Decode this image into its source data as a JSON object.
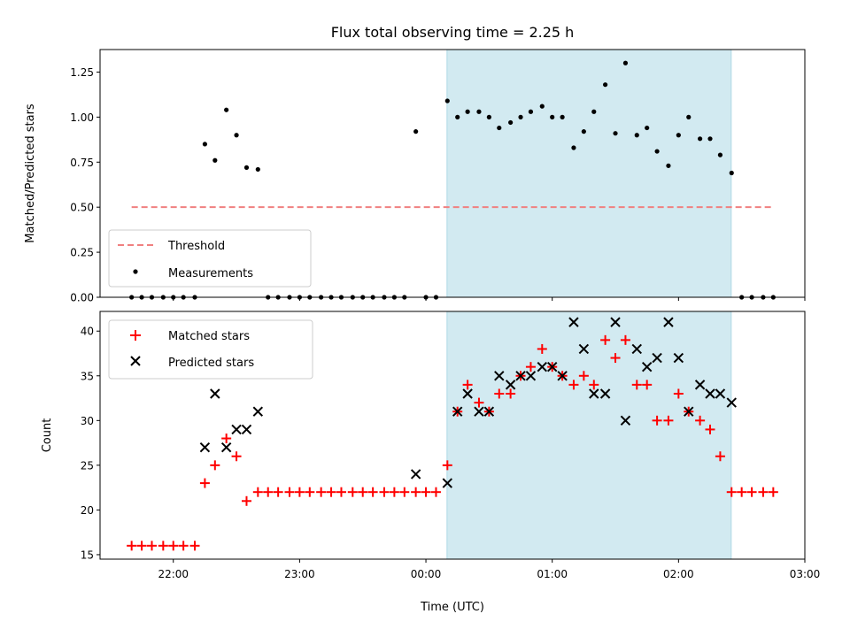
{
  "chart_data": {
    "title": "Flux total observing time = 2.25 h",
    "xlabel": "Time (UTC)",
    "x_ticks": [
      "22:00",
      "23:00",
      "00:00",
      "01:00",
      "02:00",
      "03:00"
    ],
    "x_tick_hours": [
      22,
      23,
      24,
      25,
      26,
      27
    ],
    "xlim_hours": [
      21.42,
      27.0
    ],
    "shaded_interval_hours": [
      24.167,
      26.417
    ],
    "shade_color": "#add8e6",
    "panels": [
      {
        "type": "scatter",
        "ylabel": "Matched/Predicted stars",
        "ylim": [
          0,
          1.375
        ],
        "y_ticks": [
          0.0,
          0.25,
          0.5,
          0.75,
          1.0,
          1.25
        ],
        "y_tick_labels": [
          "0.00",
          "0.25",
          "0.50",
          "0.75",
          "1.00",
          "1.25"
        ],
        "legend": {
          "position": "lower-left",
          "entries": [
            "Threshold",
            "Measurements"
          ]
        },
        "threshold": {
          "name": "Threshold",
          "y": 0.5,
          "x_range": [
            21.67,
            26.75
          ],
          "color": "#f08080"
        },
        "series": [
          {
            "name": "Measurements",
            "color": "#000000",
            "points": [
              [
                21.67,
                0
              ],
              [
                21.75,
                0
              ],
              [
                21.83,
                0
              ],
              [
                21.92,
                0
              ],
              [
                22.0,
                0
              ],
              [
                22.08,
                0
              ],
              [
                22.17,
                0
              ],
              [
                22.25,
                0.85
              ],
              [
                22.33,
                0.76
              ],
              [
                22.42,
                1.04
              ],
              [
                22.5,
                0.9
              ],
              [
                22.58,
                0.72
              ],
              [
                22.67,
                0.71
              ],
              [
                22.75,
                0
              ],
              [
                22.83,
                0
              ],
              [
                22.92,
                0
              ],
              [
                23.0,
                0
              ],
              [
                23.08,
                0
              ],
              [
                23.17,
                0
              ],
              [
                23.25,
                0
              ],
              [
                23.33,
                0
              ],
              [
                23.42,
                0
              ],
              [
                23.5,
                0
              ],
              [
                23.58,
                0
              ],
              [
                23.67,
                0
              ],
              [
                23.75,
                0
              ],
              [
                23.83,
                0
              ],
              [
                23.92,
                0.92
              ],
              [
                24.0,
                0
              ],
              [
                24.08,
                0
              ],
              [
                24.17,
                1.09
              ],
              [
                24.25,
                1.0
              ],
              [
                24.33,
                1.03
              ],
              [
                24.42,
                1.03
              ],
              [
                24.5,
                1.0
              ],
              [
                24.58,
                0.94
              ],
              [
                24.67,
                0.97
              ],
              [
                24.75,
                1.0
              ],
              [
                24.83,
                1.03
              ],
              [
                24.92,
                1.06
              ],
              [
                25.0,
                1.0
              ],
              [
                25.08,
                1.0
              ],
              [
                25.17,
                0.83
              ],
              [
                25.25,
                0.92
              ],
              [
                25.33,
                1.03
              ],
              [
                25.42,
                1.18
              ],
              [
                25.5,
                0.91
              ],
              [
                25.58,
                1.3
              ],
              [
                25.67,
                0.9
              ],
              [
                25.75,
                0.94
              ],
              [
                25.83,
                0.81
              ],
              [
                25.92,
                0.73
              ],
              [
                26.0,
                0.9
              ],
              [
                26.08,
                1.0
              ],
              [
                26.17,
                0.88
              ],
              [
                26.25,
                0.88
              ],
              [
                26.33,
                0.79
              ],
              [
                26.42,
                0.69
              ],
              [
                26.5,
                0
              ],
              [
                26.58,
                0
              ],
              [
                26.67,
                0
              ],
              [
                26.75,
                0
              ]
            ]
          }
        ]
      },
      {
        "type": "scatter",
        "ylabel": "Count",
        "ylim": [
          14.5,
          42.2
        ],
        "y_ticks": [
          15,
          20,
          25,
          30,
          35,
          40
        ],
        "y_tick_labels": [
          "15",
          "20",
          "25",
          "30",
          "35",
          "40"
        ],
        "legend": {
          "position": "top-left",
          "entries": [
            "Matched stars",
            "Predicted stars"
          ]
        },
        "series": [
          {
            "name": "Matched stars",
            "marker": "plus",
            "color": "#ff0000",
            "points": [
              [
                21.67,
                16
              ],
              [
                21.75,
                16
              ],
              [
                21.83,
                16
              ],
              [
                21.92,
                16
              ],
              [
                22.0,
                16
              ],
              [
                22.08,
                16
              ],
              [
                22.17,
                16
              ],
              [
                22.25,
                23
              ],
              [
                22.33,
                25
              ],
              [
                22.42,
                28
              ],
              [
                22.5,
                26
              ],
              [
                22.58,
                21
              ],
              [
                22.67,
                22
              ],
              [
                22.75,
                22
              ],
              [
                22.83,
                22
              ],
              [
                22.92,
                22
              ],
              [
                23.0,
                22
              ],
              [
                23.08,
                22
              ],
              [
                23.17,
                22
              ],
              [
                23.25,
                22
              ],
              [
                23.33,
                22
              ],
              [
                23.42,
                22
              ],
              [
                23.5,
                22
              ],
              [
                23.58,
                22
              ],
              [
                23.67,
                22
              ],
              [
                23.75,
                22
              ],
              [
                23.83,
                22
              ],
              [
                23.92,
                22
              ],
              [
                24.0,
                22
              ],
              [
                24.08,
                22
              ],
              [
                24.17,
                25
              ],
              [
                24.25,
                31
              ],
              [
                24.33,
                34
              ],
              [
                24.42,
                32
              ],
              [
                24.5,
                31
              ],
              [
                24.58,
                33
              ],
              [
                24.67,
                33
              ],
              [
                24.75,
                35
              ],
              [
                24.83,
                36
              ],
              [
                24.92,
                38
              ],
              [
                25.0,
                36
              ],
              [
                25.08,
                35
              ],
              [
                25.17,
                34
              ],
              [
                25.25,
                35
              ],
              [
                25.33,
                34
              ],
              [
                25.42,
                39
              ],
              [
                25.5,
                37
              ],
              [
                25.58,
                39
              ],
              [
                25.67,
                34
              ],
              [
                25.75,
                34
              ],
              [
                25.83,
                30
              ],
              [
                25.92,
                30
              ],
              [
                26.0,
                33
              ],
              [
                26.08,
                31
              ],
              [
                26.17,
                30
              ],
              [
                26.25,
                29
              ],
              [
                26.33,
                26
              ],
              [
                26.42,
                22
              ],
              [
                26.5,
                22
              ],
              [
                26.58,
                22
              ],
              [
                26.67,
                22
              ],
              [
                26.75,
                22
              ]
            ]
          },
          {
            "name": "Predicted stars",
            "marker": "x",
            "color": "#000000",
            "points": [
              [
                22.25,
                27
              ],
              [
                22.33,
                33
              ],
              [
                22.42,
                27
              ],
              [
                22.5,
                29
              ],
              [
                22.58,
                29
              ],
              [
                22.67,
                31
              ],
              [
                23.92,
                24
              ],
              [
                24.17,
                23
              ],
              [
                24.25,
                31
              ],
              [
                24.33,
                33
              ],
              [
                24.42,
                31
              ],
              [
                24.5,
                31
              ],
              [
                24.58,
                35
              ],
              [
                24.67,
                34
              ],
              [
                24.75,
                35
              ],
              [
                24.83,
                35
              ],
              [
                24.92,
                36
              ],
              [
                25.0,
                36
              ],
              [
                25.08,
                35
              ],
              [
                25.17,
                41
              ],
              [
                25.25,
                38
              ],
              [
                25.33,
                33
              ],
              [
                25.42,
                33
              ],
              [
                25.5,
                41
              ],
              [
                25.58,
                30
              ],
              [
                25.67,
                38
              ],
              [
                25.75,
                36
              ],
              [
                25.83,
                37
              ],
              [
                25.92,
                41
              ],
              [
                26.0,
                37
              ],
              [
                26.08,
                31
              ],
              [
                26.17,
                34
              ],
              [
                26.25,
                33
              ],
              [
                26.33,
                33
              ],
              [
                26.42,
                32
              ]
            ]
          }
        ]
      }
    ]
  }
}
